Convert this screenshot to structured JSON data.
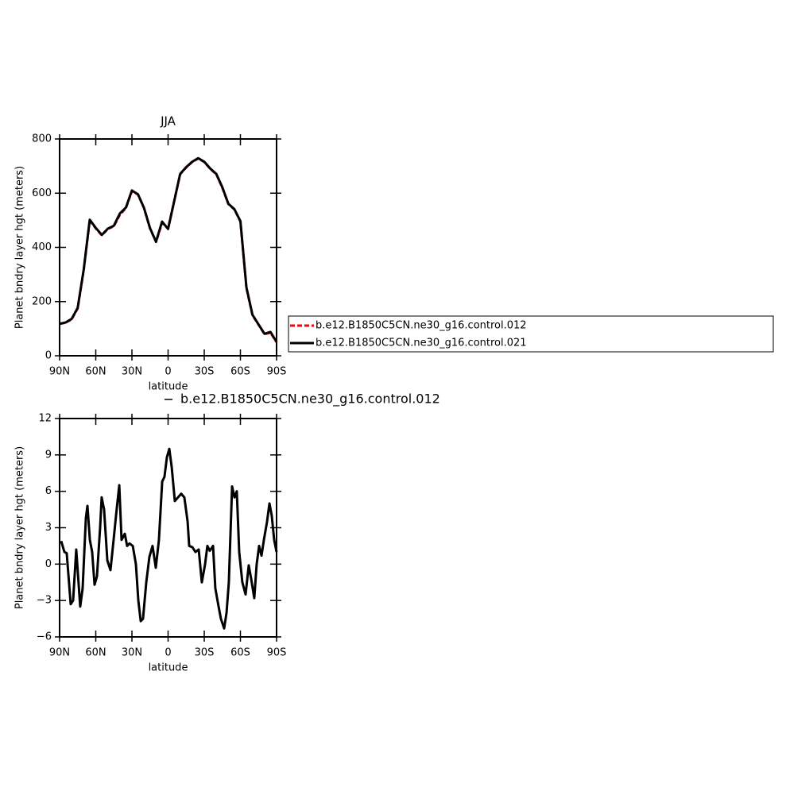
{
  "chart_data": [
    {
      "type": "line",
      "title": "JJA",
      "xlabel": "latitude",
      "ylabel": "Planet bndry layer hgt (meters)",
      "x": [
        90,
        85,
        80,
        75,
        70,
        65,
        60,
        55,
        50,
        45,
        40,
        35,
        30,
        25,
        20,
        15,
        10,
        5,
        0,
        -5,
        -10,
        -15,
        -20,
        -25,
        -30,
        -35,
        -40,
        -45,
        -50,
        -55,
        -60,
        -65,
        -70,
        -75,
        -80,
        -85,
        -90
      ],
      "series": [
        {
          "name": "b.e12.B1850C5CN.ne30_g16.control.012",
          "color": "#ff0000",
          "dash": "dashed",
          "values": [
            118,
            122,
            135,
            175,
            316,
            500,
            470,
            445,
            468,
            478,
            520,
            545,
            608,
            595,
            545,
            470,
            420,
            490,
            470,
            570,
            670,
            695,
            715,
            728,
            715,
            690,
            670,
            620,
            560,
            540,
            495,
            250,
            150,
            115,
            80,
            85,
            50
          ]
        },
        {
          "name": "b.e12.B1850C5CN.ne30_g16.control.021",
          "color": "#000000",
          "dash": "solid",
          "values": [
            118,
            123,
            136,
            177,
            318,
            502,
            472,
            446,
            469,
            480,
            525,
            547,
            610,
            596,
            546,
            471,
            421,
            495,
            468,
            569,
            671,
            696,
            716,
            729,
            716,
            691,
            671,
            622,
            561,
            541,
            497,
            252,
            151,
            116,
            81,
            88,
            51
          ]
        }
      ],
      "xlim": [
        90,
        -90
      ],
      "xticks": [
        {
          "value": 90,
          "label": "90N"
        },
        {
          "value": 60,
          "label": "60N"
        },
        {
          "value": 30,
          "label": "30N"
        },
        0,
        {
          "value": -30,
          "label": "30S"
        },
        {
          "value": -60,
          "label": "60S"
        },
        {
          "value": -90,
          "label": "90S"
        }
      ],
      "ylim": [
        0,
        800
      ],
      "yticks": [
        0,
        200,
        400,
        600,
        800
      ],
      "legend": "right"
    },
    {
      "type": "line",
      "xlabel": "latitude",
      "ylabel": "Planet bndry layer hgt (meters)",
      "x": [
        88.7,
        86.0,
        84.1,
        80.8,
        78.8,
        76.2,
        72.9,
        70.9,
        68.2,
        66.9,
        64.9,
        63.0,
        61.0,
        59.0,
        56.4,
        55.1,
        53.1,
        50.4,
        47.8,
        45.2,
        43.2,
        40.5,
        38.6,
        35.9,
        34.0,
        32.0,
        29.3,
        26.7,
        24.7,
        22.7,
        20.8,
        18.1,
        15.5,
        12.9,
        10.2,
        7.6,
        4.9,
        3.0,
        1.0,
        -1.0,
        -3.0,
        -5.6,
        -8.2,
        -10.9,
        -13.5,
        -16.2,
        -17.5,
        -20.1,
        -22.7,
        -25.4,
        -28.0,
        -30.7,
        -32.6,
        -34.6,
        -37.3,
        -39.2,
        -41.9,
        -43.8,
        -46.5,
        -48.5,
        -50.4,
        -53.1,
        -55.1,
        -57.0,
        -59.0,
        -61.6,
        -64.3,
        -66.9,
        -68.9,
        -71.5,
        -73.5,
        -75.5,
        -77.5,
        -79.5,
        -82.1,
        -84.1,
        -86.0,
        -88.0,
        -90.0
      ],
      "series": [
        {
          "name": "b.e12.B1850C5CN.ne30_g16.control.012",
          "color": "#000000",
          "dash": "solid",
          "values": [
            1.9,
            1.0,
            0.9,
            -3.3,
            -3.0,
            1.2,
            -3.5,
            -2.0,
            3.8,
            4.8,
            2.0,
            1.0,
            -1.7,
            -1.0,
            3.0,
            5.5,
            4.5,
            0.3,
            -0.5,
            2.0,
            4.0,
            6.5,
            2.0,
            2.5,
            1.5,
            1.7,
            1.5,
            0.0,
            -3.0,
            -4.7,
            -4.5,
            -1.5,
            0.6,
            1.5,
            -0.3,
            2.0,
            6.8,
            7.2,
            8.8,
            9.5,
            8.0,
            5.2,
            5.5,
            5.8,
            5.5,
            3.5,
            1.5,
            1.4,
            1.0,
            1.2,
            -1.5,
            0.0,
            1.5,
            1.1,
            1.5,
            -2.0,
            -3.5,
            -4.5,
            -5.3,
            -4.0,
            -1.5,
            6.4,
            5.5,
            6.0,
            1.0,
            -1.5,
            -2.5,
            -0.1,
            -1.2,
            -2.8,
            0.0,
            1.5,
            0.7,
            2.0,
            3.5,
            5.0,
            4.0,
            2.0,
            1.0
          ]
        }
      ],
      "xlim": [
        90,
        -90
      ],
      "xticks": [
        {
          "value": 90,
          "label": "90N"
        },
        {
          "value": 60,
          "label": "60N"
        },
        {
          "value": 30,
          "label": "30N"
        },
        0,
        {
          "value": -30,
          "label": "30S"
        },
        {
          "value": -60,
          "label": "60S"
        },
        {
          "value": -90,
          "label": "90S"
        }
      ],
      "ylim": [
        -6,
        12
      ],
      "yticks": [
        {
          "value": -6,
          "label": "−6"
        },
        {
          "value": -3,
          "label": "−3"
        },
        0,
        3,
        6,
        9,
        12
      ],
      "legend": "top"
    }
  ]
}
